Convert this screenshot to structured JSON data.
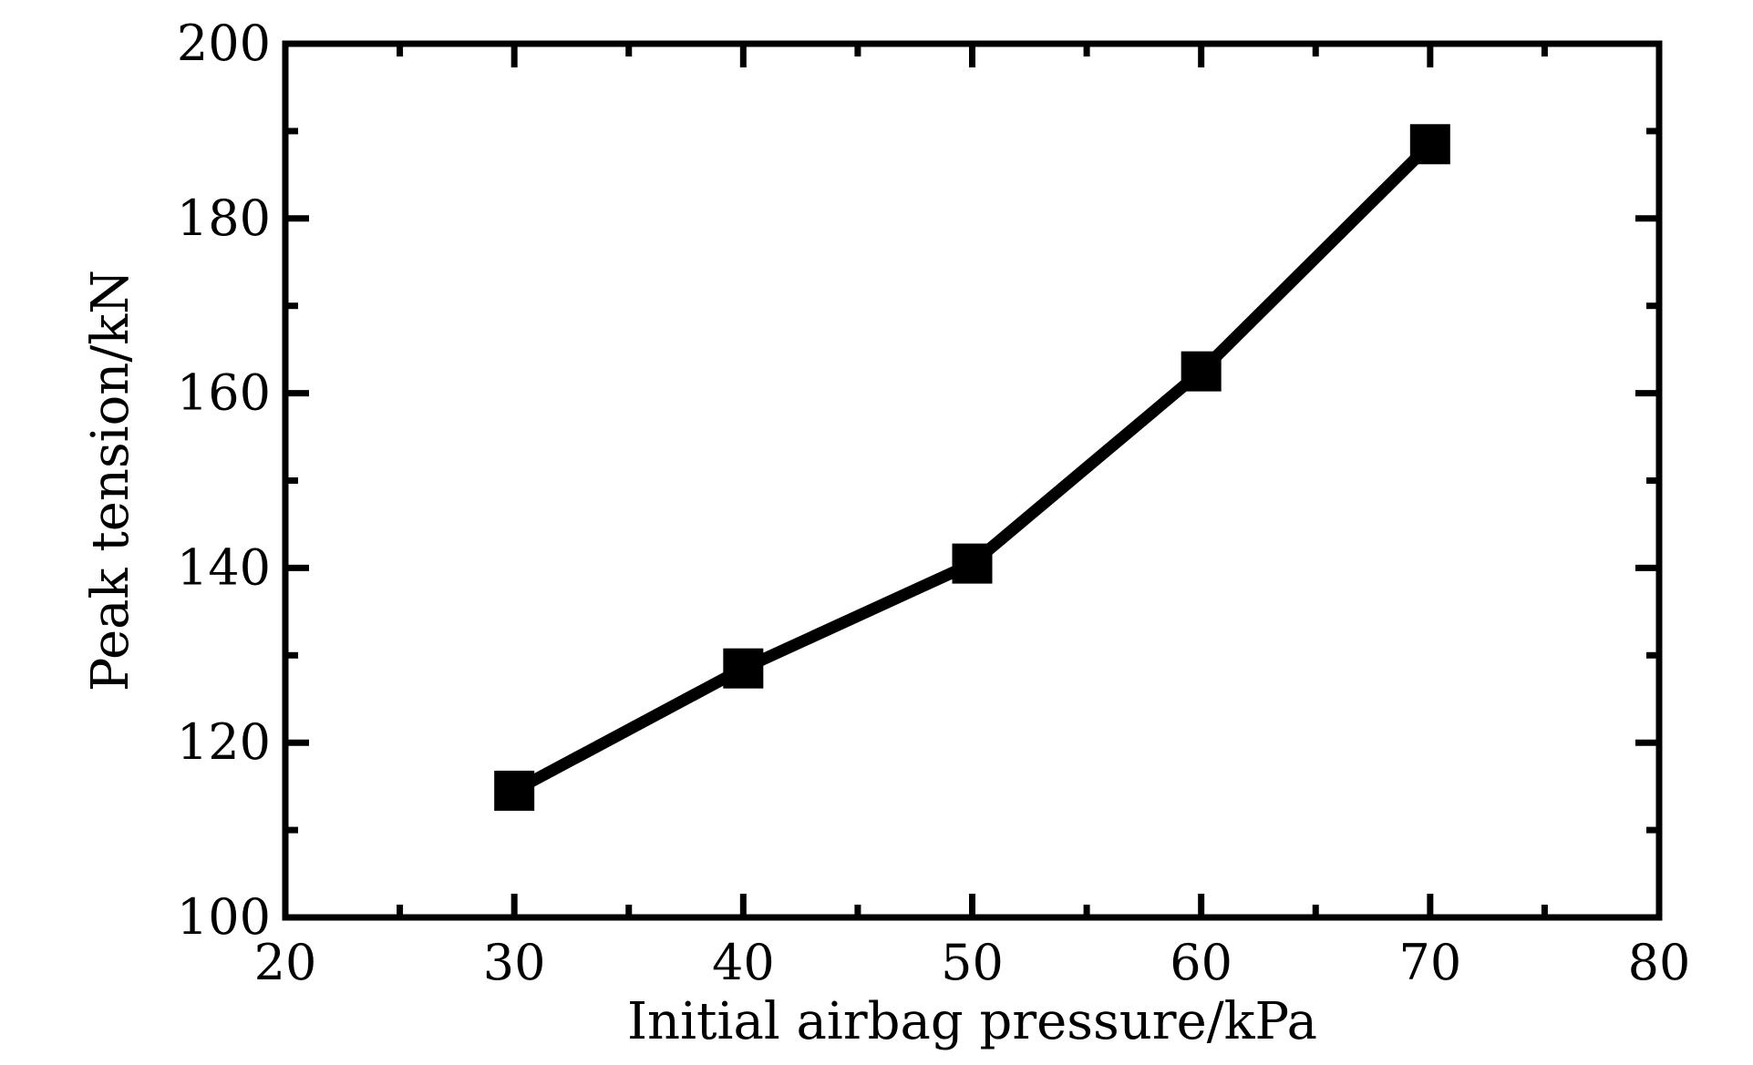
{
  "chart_data": {
    "type": "line",
    "xlabel": "Initial airbag pressure/kPa",
    "ylabel": "Peak tension/kN",
    "xlim": [
      20,
      80
    ],
    "ylim": [
      100,
      200
    ],
    "xticks": [
      20,
      30,
      40,
      50,
      60,
      70,
      80
    ],
    "yticks": [
      100,
      120,
      140,
      160,
      180,
      200
    ],
    "x_minor_step": 5,
    "y_minor_step": 10,
    "grid": false,
    "marker": "square",
    "line_color": "#000000",
    "series": [
      {
        "x": [
          30,
          40,
          50,
          60,
          70
        ],
        "values": [
          114.5,
          128.5,
          140.5,
          162.5,
          188.5
        ]
      }
    ]
  }
}
